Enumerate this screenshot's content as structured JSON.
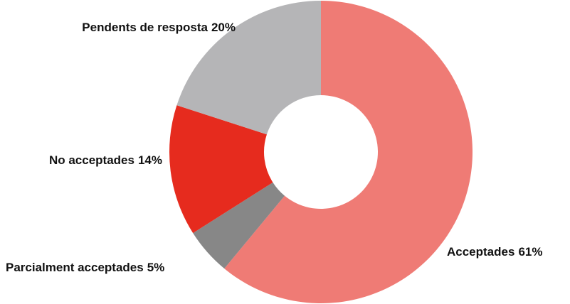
{
  "chart_data": {
    "type": "donut",
    "categories": [
      "Acceptades",
      "Parcialment acceptades",
      "No acceptades",
      "Pendents de resposta"
    ],
    "values": [
      61,
      5,
      14,
      20
    ],
    "value_labels": [
      "61%",
      "5%",
      "14%",
      "20%"
    ],
    "colors": [
      "#ef7b75",
      "#878787",
      "#e62b1e",
      "#b5b5b7"
    ]
  }
}
